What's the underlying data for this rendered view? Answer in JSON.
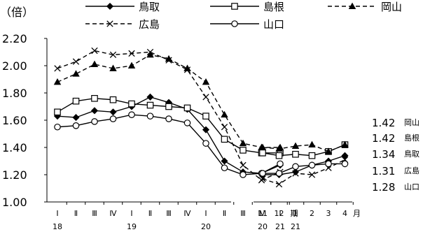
{
  "chart_data": {
    "type": "line",
    "unit_label": "（倍）",
    "ylim": [
      1.0,
      2.2
    ],
    "yticks": [
      "2.20",
      "2.00",
      "1.80",
      "1.60",
      "1.40",
      "1.20",
      "1.00"
    ],
    "grid": false,
    "legend_position": "top",
    "quarter_labels": [
      "Ⅰ",
      "Ⅱ",
      "Ⅲ",
      "Ⅳ",
      "Ⅰ",
      "Ⅱ",
      "Ⅲ",
      "Ⅳ",
      "Ⅰ",
      "Ⅱ",
      "Ⅲ",
      "Ⅳ",
      "Ⅰ"
    ],
    "quarter_year_labels": [
      {
        "label": "18",
        "at": 0
      },
      {
        "label": "19",
        "at": 4
      },
      {
        "label": "20",
        "at": 8
      },
      {
        "label": "21",
        "at": 12
      }
    ],
    "period_label": "期",
    "month_labels": [
      "11",
      "12",
      "1",
      "2",
      "3",
      "4"
    ],
    "month_year_labels": [
      {
        "label": "20",
        "at": 0
      },
      {
        "label": "21",
        "at": 2
      }
    ],
    "month_unit_label": "月",
    "series": [
      {
        "name": "鳥取",
        "line": "solid",
        "marker": "diamond",
        "end_value": "1.34",
        "quarterly": [
          1.63,
          1.62,
          1.67,
          1.66,
          1.7,
          1.77,
          1.73,
          1.68,
          1.53,
          1.3,
          1.22,
          1.21,
          1.27
        ],
        "monthly": [
          1.2,
          1.2,
          1.22,
          1.27,
          1.3,
          1.34
        ]
      },
      {
        "name": "島根",
        "line": "solid",
        "marker": "square",
        "end_value": "1.42",
        "quarterly": [
          1.66,
          1.74,
          1.76,
          1.75,
          1.72,
          1.71,
          1.7,
          1.69,
          1.63,
          1.46,
          1.38,
          1.36,
          1.36
        ],
        "monthly": [
          1.36,
          1.34,
          1.35,
          1.34,
          1.37,
          1.42
        ]
      },
      {
        "name": "岡山",
        "line": "dashed",
        "marker": "triangle",
        "end_value": "1.42",
        "quarterly": [
          1.88,
          1.94,
          2.01,
          1.98,
          2.0,
          2.08,
          2.05,
          1.98,
          1.88,
          1.64,
          1.43,
          1.4,
          1.4
        ],
        "monthly": [
          1.4,
          1.39,
          1.41,
          1.42,
          1.37,
          1.42
        ]
      },
      {
        "name": "広島",
        "line": "dashed",
        "marker": "cross",
        "end_value": "1.31",
        "quarterly": [
          1.98,
          2.03,
          2.11,
          2.08,
          2.09,
          2.1,
          2.04,
          1.97,
          1.77,
          1.55,
          1.27,
          1.16,
          1.22
        ],
        "monthly": [
          1.17,
          1.13,
          1.21,
          1.2,
          1.25,
          1.31
        ]
      },
      {
        "name": "山口",
        "line": "solid",
        "marker": "circle",
        "end_value": "1.28",
        "quarterly": [
          1.55,
          1.56,
          1.59,
          1.61,
          1.64,
          1.63,
          1.61,
          1.58,
          1.43,
          1.25,
          1.2,
          1.21,
          1.28
        ],
        "monthly": [
          1.21,
          1.21,
          1.26,
          1.27,
          1.28,
          1.28
        ]
      }
    ],
    "end_label_order": [
      "岡山",
      "島根",
      "鳥取",
      "広島",
      "山口"
    ]
  }
}
